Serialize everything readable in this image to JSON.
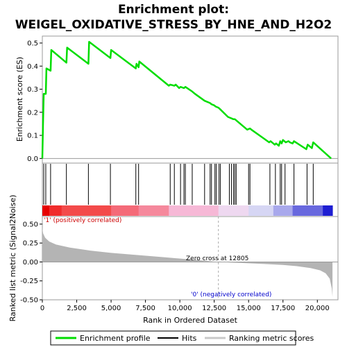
{
  "title_line1": "Enrichment plot:",
  "title_line2": "WEIGEL_OXIDATIVE_STRESS_BY_HNE_AND_H2O2",
  "colors": {
    "es_line": "#00dd00",
    "hits": "#000000",
    "metric_fill": "#b4b4b4",
    "pos_label": "#cc0000",
    "neg_label": "#0000cc"
  },
  "chart_data": [
    {
      "type": "line",
      "name": "enrichment-score-panel",
      "ylabel": "Enrichment score (ES)",
      "xlim": [
        0,
        21500
      ],
      "ylim": [
        -0.02,
        0.53
      ],
      "yticks": [
        0.0,
        0.1,
        0.2,
        0.3,
        0.4,
        0.5
      ],
      "ytick_labels": [
        "0.0",
        "0.1",
        "0.2",
        "0.3",
        "0.4",
        "0.5"
      ],
      "x": [
        0,
        50,
        100,
        110,
        250,
        300,
        600,
        650,
        1750,
        1800,
        3350,
        3400,
        4950,
        5000,
        6800,
        6850,
        7000,
        7050,
        9200,
        9300,
        9600,
        9700,
        9950,
        10050,
        10300,
        10400,
        10900,
        11100,
        11800,
        12200,
        12300,
        12500,
        12600,
        12800,
        12900,
        13500,
        13700,
        13900,
        14000,
        14100,
        14900,
        15100,
        15200,
        16500,
        16600,
        16900,
        17000,
        17200,
        17300,
        17400,
        17500,
        17700,
        17900,
        18000,
        18200,
        18300,
        19200,
        19300,
        19600,
        19700,
        21000
      ],
      "y": [
        0.0,
        0.15,
        0.28,
        0.28,
        0.28,
        0.39,
        0.38,
        0.47,
        0.415,
        0.48,
        0.41,
        0.505,
        0.435,
        0.47,
        0.39,
        0.41,
        0.395,
        0.42,
        0.315,
        0.32,
        0.315,
        0.32,
        0.305,
        0.31,
        0.305,
        0.31,
        0.29,
        0.28,
        0.25,
        0.24,
        0.235,
        0.23,
        0.225,
        0.22,
        0.215,
        0.18,
        0.175,
        0.17,
        0.17,
        0.165,
        0.125,
        0.13,
        0.125,
        0.07,
        0.075,
        0.06,
        0.065,
        0.055,
        0.075,
        0.065,
        0.08,
        0.07,
        0.075,
        0.07,
        0.065,
        0.075,
        0.04,
        0.06,
        0.045,
        0.07,
        0.0
      ]
    },
    {
      "type": "bar",
      "name": "hits-panel",
      "xlim": [
        0,
        21500
      ],
      "hit_positions": [
        100,
        250,
        600,
        1750,
        3350,
        4950,
        6800,
        7000,
        9300,
        9600,
        10050,
        10300,
        10400,
        10900,
        11800,
        12200,
        12300,
        12550,
        12650,
        12850,
        12950,
        13600,
        13750,
        13900,
        14000,
        14100,
        15000,
        15100,
        16550,
        16950,
        17300,
        17400,
        17650,
        18300,
        19250,
        19700
      ],
      "color_bar_stops": [
        {
          "rank": 0,
          "color": "#e60000"
        },
        {
          "rank": 500,
          "color": "#f02c2c"
        },
        {
          "rank": 1400,
          "color": "#f34a4a"
        },
        {
          "rank": 5000,
          "color": "#f46a78"
        },
        {
          "rank": 7000,
          "color": "#f5889c"
        },
        {
          "rank": 9200,
          "color": "#f6b8d6"
        },
        {
          "rank": 12805,
          "color": "#eed8f0"
        },
        {
          "rank": 15000,
          "color": "#d6d6f4"
        },
        {
          "rank": 16800,
          "color": "#a8a8ec"
        },
        {
          "rank": 18200,
          "color": "#6868de"
        },
        {
          "rank": 20400,
          "color": "#1e1ed2"
        },
        {
          "rank": 21100,
          "color": "#1414c8"
        }
      ]
    },
    {
      "type": "area",
      "name": "ranked-metric-panel",
      "ylabel": "Ranked list metric (Signal2Noise)",
      "xlabel": "Rank in Ordered Dataset",
      "xlim": [
        0,
        21500
      ],
      "ylim": [
        -0.5,
        0.6
      ],
      "yticks": [
        -0.5,
        -0.25,
        0.0,
        0.25,
        0.5
      ],
      "ytick_labels": [
        "-0.50",
        "-0.25",
        "0.00",
        "0.25",
        "0.50"
      ],
      "xticks": [
        0,
        2500,
        5000,
        7500,
        10000,
        12500,
        15000,
        17500,
        20000
      ],
      "xtick_labels": [
        "0",
        "2,500",
        "5,000",
        "7,500",
        "10,000",
        "12,500",
        "15,000",
        "17,500",
        "20,000"
      ],
      "x": [
        0,
        50,
        200,
        500,
        1000,
        2000,
        3500,
        5000,
        7000,
        9000,
        11000,
        12805,
        14000,
        16000,
        17500,
        18500,
        19500,
        20200,
        20600,
        20900,
        21050,
        21100
      ],
      "y": [
        0.45,
        0.38,
        0.32,
        0.27,
        0.23,
        0.19,
        0.15,
        0.12,
        0.09,
        0.06,
        0.03,
        0.0,
        -0.01,
        -0.025,
        -0.04,
        -0.055,
        -0.08,
        -0.11,
        -0.15,
        -0.22,
        -0.35,
        -0.46
      ],
      "zero_cross": 12805,
      "zero_cross_label": "Zero cross at 12805",
      "pos_label": "'1' (positively correlated)",
      "neg_label": "'0' (negatively correlated)"
    }
  ],
  "legend": {
    "items": [
      {
        "label": "Enrichment profile",
        "kind": "es"
      },
      {
        "label": "Hits",
        "kind": "hits"
      },
      {
        "label": "Ranking metric scores",
        "kind": "metric"
      }
    ]
  }
}
